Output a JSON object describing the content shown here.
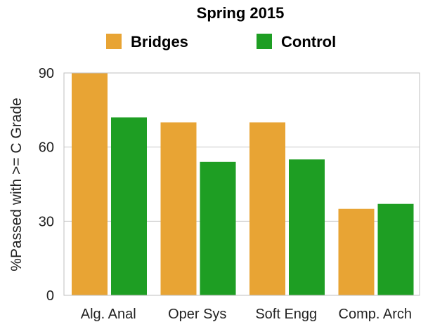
{
  "chart_data": {
    "type": "bar",
    "title": "Spring 2015",
    "xlabel": "",
    "ylabel": "%Passed with >= C Grade",
    "categories": [
      "Alg. Anal",
      "Oper Sys",
      "Soft Engg",
      "Comp. Arch"
    ],
    "series": [
      {
        "name": "Bridges",
        "values": [
          90,
          70,
          70,
          35
        ],
        "color": "#E8A434"
      },
      {
        "name": "Control",
        "values": [
          72,
          54,
          55,
          37
        ],
        "color": "#1E9E23"
      }
    ],
    "ylim": [
      0,
      90
    ],
    "yticks": [
      0,
      30,
      60,
      90
    ],
    "grid": true,
    "legend": "top-center"
  }
}
